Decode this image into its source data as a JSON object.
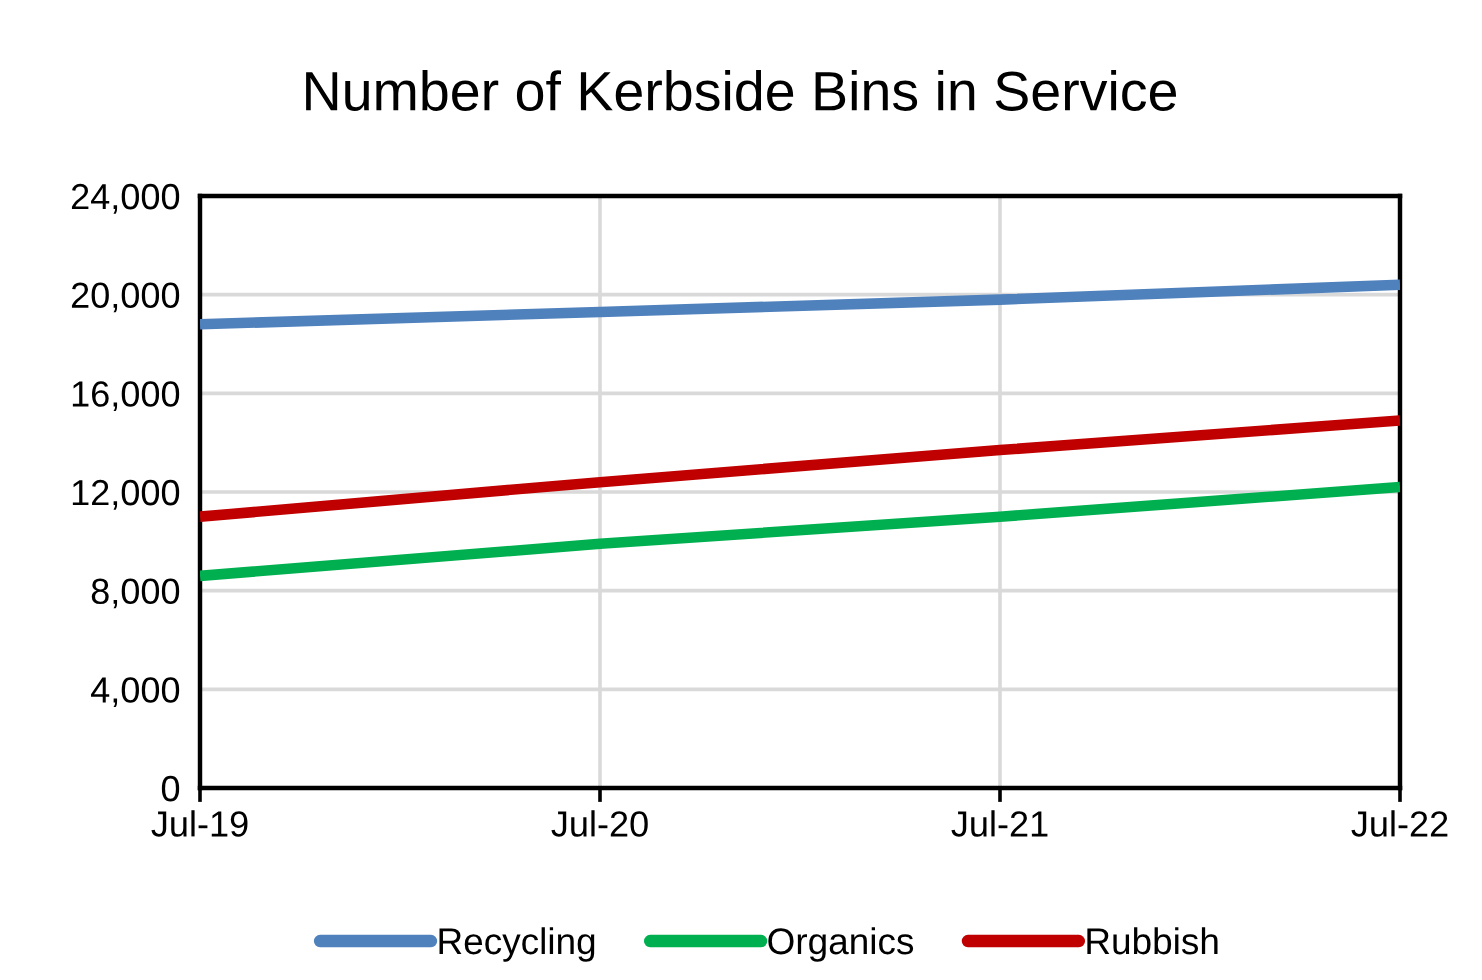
{
  "chart_data": {
    "type": "line",
    "title": "Number of Kerbside Bins in Service",
    "categories": [
      "Jul-19",
      "Jul-20",
      "Jul-21",
      "Jul-22"
    ],
    "series": [
      {
        "name": "Recycling",
        "color": "#4f81bd",
        "values": [
          18800,
          19300,
          19800,
          20400
        ]
      },
      {
        "name": "Organics",
        "color": "#00b050",
        "values": [
          8600,
          9900,
          11000,
          12200
        ]
      },
      {
        "name": "Rubbish",
        "color": "#c00000",
        "values": [
          11000,
          12400,
          13700,
          14900
        ]
      }
    ],
    "ylim": [
      0,
      24000
    ],
    "yticks": [
      0,
      {
        "value": 4000,
        "label": "4,000"
      },
      {
        "value": 8000,
        "label": "8,000"
      },
      {
        "value": 12000,
        "label": "12,000"
      },
      {
        "value": 16000,
        "label": "16,000"
      },
      {
        "value": 20000,
        "label": "20,000"
      },
      {
        "value": 24000,
        "label": "24,000"
      }
    ],
    "grid": true,
    "legend": "bottom",
    "line_style": "solid"
  }
}
